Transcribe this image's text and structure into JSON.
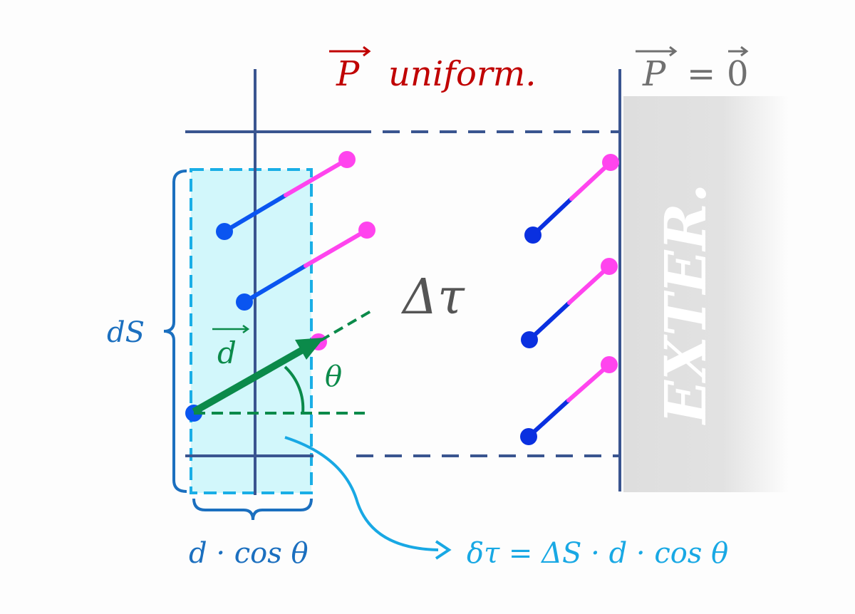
{
  "labels": {
    "p_uniform_symbol": "P",
    "p_uniform_text": "uniform.",
    "p_zero_symbol": "P",
    "p_zero_eq": "=",
    "p_zero_value": "0",
    "exterior": "EXTER.",
    "delta_tau": "Δτ",
    "ds": "dS",
    "d_vector": "d",
    "theta": "θ",
    "projection": "d · cos θ",
    "formula": "δτ = ΔS · d · cos θ"
  },
  "colors": {
    "p_uniform": "#c00000",
    "p_zero": "#707070",
    "frame": "#3a5590",
    "cyan_fill": "#d2f7fb",
    "cyan_border": "#1aaee6",
    "dipole_negative": "#0a55f0",
    "dipole_positive": "#ff44ee",
    "vector_green": "#0b8a4a",
    "brace_blue": "#1b6fbf",
    "formula_cyan": "#18a8e4",
    "delta_tau": "#555555",
    "exterior_bg": "#e0e0e0"
  }
}
